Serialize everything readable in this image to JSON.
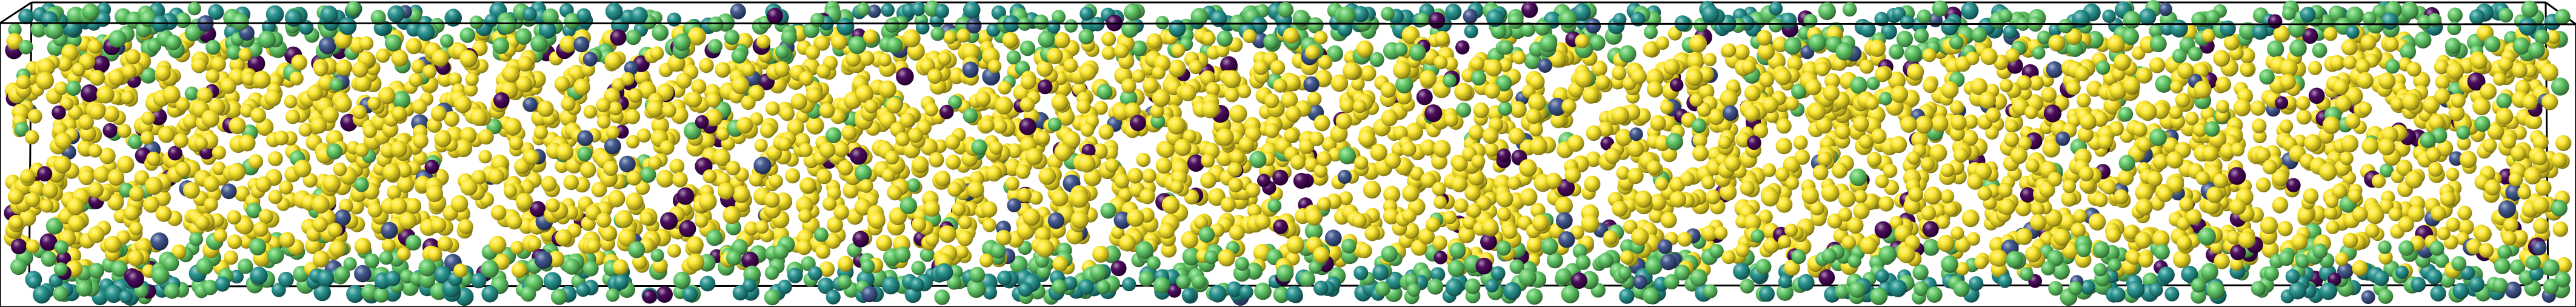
{
  "visualization": {
    "subject": "particle-packing-render",
    "background_color": "#ffffff",
    "bounding_box_color": "#000000",
    "colormap": "viridis",
    "colormap_stops": [
      "#440154",
      "#3b528b",
      "#21918c",
      "#5ec962",
      "#fde725"
    ],
    "particle_highlight_color": "#ffffff",
    "particle_shadow_color": "#1a1a1a"
  }
}
